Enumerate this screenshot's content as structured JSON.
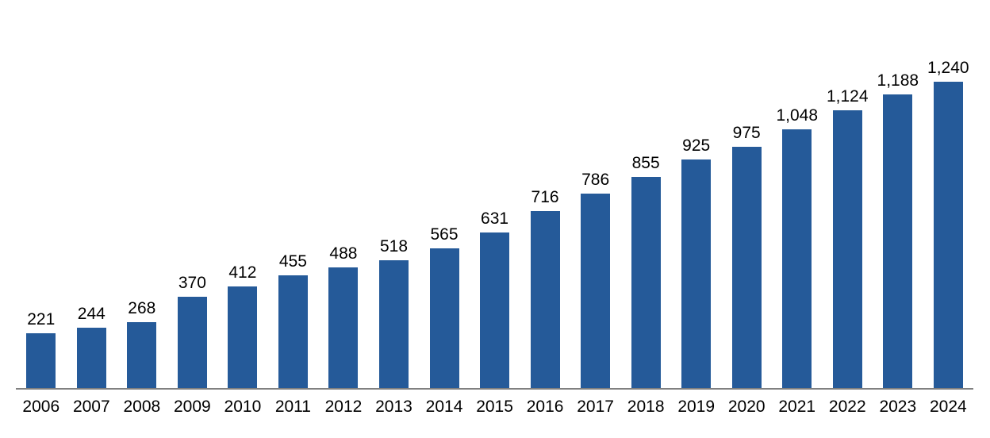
{
  "chart_data": {
    "type": "bar",
    "title": "",
    "xlabel": "",
    "ylabel": "",
    "categories": [
      "2006",
      "2007",
      "2008",
      "2009",
      "2010",
      "2011",
      "2012",
      "2013",
      "2014",
      "2015",
      "2016",
      "2017",
      "2018",
      "2019",
      "2020",
      "2021",
      "2022",
      "2023",
      "2024"
    ],
    "values": [
      221,
      244,
      268,
      370,
      412,
      455,
      488,
      518,
      565,
      631,
      716,
      786,
      855,
      925,
      975,
      1048,
      1124,
      1188,
      1240
    ],
    "value_labels": [
      "221",
      "244",
      "268",
      "370",
      "412",
      "455",
      "488",
      "518",
      "565",
      "631",
      "716",
      "786",
      "855",
      "925",
      "975",
      "1,048",
      "1,124",
      "1,188",
      "1,240"
    ],
    "ylim": [
      0,
      1240
    ],
    "grid": false,
    "legend": false,
    "y_axis_visible": false,
    "bar_color": "#255A99",
    "axis_line_color": "#808080",
    "label_color": "#000000",
    "background_color": "#FFFFFF"
  }
}
